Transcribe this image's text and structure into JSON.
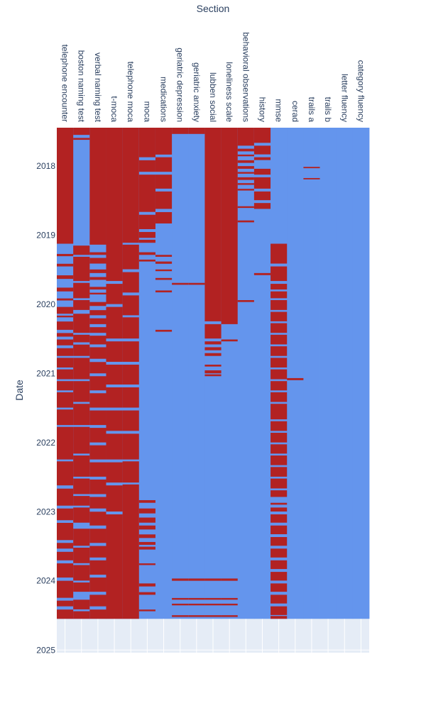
{
  "chart_data": {
    "type": "heatmap",
    "xlabel": "Section",
    "ylabel": "Date",
    "x_axis_position": "top",
    "categories": [
      "telephone encounter",
      "boston naming test",
      "verbal naming test",
      "t-moca",
      "telephone moca",
      "moca",
      "medications",
      "geriatric depression",
      "geriatric anxiety",
      "lubben social",
      "loneliness scale",
      "behavioral observations",
      "history",
      "mmse",
      "cerad",
      "trails a",
      "trails b",
      "letter fluency",
      "category fluency"
    ],
    "yticks": [
      "2018",
      "2019",
      "2020",
      "2021",
      "2022",
      "2023",
      "2024",
      "2025"
    ],
    "ylim": [
      "2017-06-12",
      "2025-01-15"
    ],
    "data_range": [
      "2017-06-12",
      "2024-07-20"
    ],
    "colors": {
      "present": "#b22222",
      "absent": "#6495ed",
      "background": "#e5ecf6",
      "grid": "#ffffff"
    },
    "series": [
      {
        "name": "telephone encounter",
        "present_ranges": [
          [
            "2017-06-12",
            "2019-02-15"
          ],
          [
            "2019-04-10",
            "2019-04-22"
          ],
          [
            "2019-06-01",
            "2019-06-15"
          ],
          [
            "2019-08-01",
            "2019-08-20"
          ],
          [
            "2019-10-05",
            "2019-10-25"
          ],
          [
            "2019-12-01",
            "2019-12-12"
          ],
          [
            "2020-01-15",
            "2020-02-20"
          ],
          [
            "2020-03-01",
            "2020-03-10"
          ],
          [
            "2020-04-01",
            "2020-05-15"
          ],
          [
            "2020-06-01",
            "2020-06-20"
          ],
          [
            "2020-07-05",
            "2020-08-05"
          ],
          [
            "2020-08-20",
            "2020-09-30"
          ],
          [
            "2020-10-10",
            "2020-11-30"
          ],
          [
            "2020-12-10",
            "2021-01-31"
          ],
          [
            "2021-02-10",
            "2021-03-31"
          ],
          [
            "2021-04-10",
            "2021-06-30"
          ],
          [
            "2021-07-10",
            "2021-09-30"
          ],
          [
            "2021-10-10",
            "2022-03-31"
          ],
          [
            "2022-04-10",
            "2022-08-15"
          ],
          [
            "2022-09-01",
            "2022-11-30"
          ],
          [
            "2022-12-15",
            "2023-02-15"
          ],
          [
            "2023-03-01",
            "2023-05-31"
          ],
          [
            "2023-06-15",
            "2023-07-15"
          ],
          [
            "2023-08-01",
            "2023-09-15"
          ],
          [
            "2023-10-01",
            "2023-12-15"
          ],
          [
            "2024-01-01",
            "2024-03-31"
          ],
          [
            "2024-04-15",
            "2024-05-15"
          ],
          [
            "2024-06-01",
            "2024-07-20"
          ]
        ]
      },
      {
        "name": "boston naming test",
        "present_ranges": [
          [
            "2017-06-12",
            "2017-07-20"
          ],
          [
            "2017-08-05",
            "2017-08-15"
          ],
          [
            "2019-02-25",
            "2019-04-15"
          ],
          [
            "2019-04-25",
            "2019-08-31"
          ],
          [
            "2019-09-10",
            "2019-11-30"
          ],
          [
            "2019-12-10",
            "2020-01-31"
          ],
          [
            "2020-02-20",
            "2020-05-31"
          ],
          [
            "2020-06-10",
            "2020-07-20"
          ],
          [
            "2020-08-01",
            "2020-09-30"
          ],
          [
            "2020-10-10",
            "2021-01-31"
          ],
          [
            "2021-02-10",
            "2021-05-31"
          ],
          [
            "2021-06-10",
            "2021-09-30"
          ],
          [
            "2021-10-10",
            "2022-02-28"
          ],
          [
            "2022-03-10",
            "2022-06-30"
          ],
          [
            "2022-07-10",
            "2022-09-30"
          ],
          [
            "2022-10-10",
            "2022-11-30"
          ],
          [
            "2022-12-10",
            "2023-02-28"
          ],
          [
            "2023-04-01",
            "2023-06-30"
          ],
          [
            "2023-07-10",
            "2023-09-30"
          ],
          [
            "2023-10-10",
            "2023-12-31"
          ],
          [
            "2024-01-10",
            "2024-02-28"
          ],
          [
            "2024-04-10",
            "2024-05-31"
          ],
          [
            "2024-06-10",
            "2024-07-20"
          ]
        ]
      },
      {
        "name": "verbal naming test",
        "present_ranges": [
          [
            "2017-06-12",
            "2019-02-20"
          ],
          [
            "2019-04-01",
            "2019-04-15"
          ],
          [
            "2019-05-01",
            "2019-05-31"
          ],
          [
            "2019-07-01",
            "2019-07-20"
          ],
          [
            "2019-08-10",
            "2019-08-25"
          ],
          [
            "2019-10-01",
            "2019-10-15"
          ],
          [
            "2019-11-01",
            "2019-11-10"
          ],
          [
            "2019-12-20",
            "2020-01-10"
          ],
          [
            "2020-02-01",
            "2020-02-28"
          ],
          [
            "2020-03-15",
            "2020-04-15"
          ],
          [
            "2020-05-01",
            "2020-05-31"
          ],
          [
            "2020-06-15",
            "2020-07-31"
          ],
          [
            "2020-08-15",
            "2020-10-15"
          ],
          [
            "2020-11-01",
            "2020-12-31"
          ],
          [
            "2021-01-15",
            "2021-03-31"
          ],
          [
            "2021-04-15",
            "2021-06-30"
          ],
          [
            "2021-07-15",
            "2021-09-30"
          ],
          [
            "2021-10-15",
            "2021-12-31"
          ],
          [
            "2022-01-15",
            "2022-03-31"
          ],
          [
            "2022-04-15",
            "2022-06-30"
          ],
          [
            "2022-07-15",
            "2022-09-30"
          ],
          [
            "2022-10-15",
            "2022-12-15"
          ],
          [
            "2023-01-01",
            "2023-03-15"
          ],
          [
            "2023-04-01",
            "2023-06-15"
          ],
          [
            "2023-07-01",
            "2023-08-31"
          ],
          [
            "2023-09-15",
            "2023-11-30"
          ],
          [
            "2023-12-15",
            "2024-02-28"
          ],
          [
            "2024-03-15",
            "2024-05-15"
          ],
          [
            "2024-06-01",
            "2024-07-20"
          ]
        ]
      },
      {
        "name": "t-moca",
        "present_ranges": [
          [
            "2017-06-12",
            "2019-08-31"
          ],
          [
            "2019-09-15",
            "2019-12-31"
          ],
          [
            "2020-01-15",
            "2020-06-30"
          ],
          [
            "2020-07-15",
            "2020-10-31"
          ],
          [
            "2020-11-15",
            "2021-02-28"
          ],
          [
            "2021-03-15",
            "2021-06-30"
          ],
          [
            "2021-07-15",
            "2021-10-31"
          ],
          [
            "2021-11-15",
            "2022-03-31"
          ],
          [
            "2022-04-15",
            "2022-07-31"
          ],
          [
            "2022-08-15",
            "2022-12-31"
          ],
          [
            "2023-01-15",
            "2024-07-20"
          ]
        ]
      },
      {
        "name": "telephone moca",
        "present_ranges": [
          [
            "2017-06-12",
            "2019-02-10"
          ],
          [
            "2019-02-20",
            "2019-06-30"
          ],
          [
            "2019-07-15",
            "2019-10-31"
          ],
          [
            "2019-11-15",
            "2020-02-28"
          ],
          [
            "2020-03-10",
            "2020-06-30"
          ],
          [
            "2020-07-15",
            "2020-10-31"
          ],
          [
            "2020-11-15",
            "2021-02-28"
          ],
          [
            "2021-03-15",
            "2021-06-30"
          ],
          [
            "2021-07-15",
            "2021-10-31"
          ],
          [
            "2021-11-15",
            "2022-03-31"
          ],
          [
            "2022-04-10",
            "2022-07-31"
          ],
          [
            "2022-08-10",
            "2024-07-20"
          ]
        ]
      },
      {
        "name": "moca",
        "present_ranges": [
          [
            "2017-06-12",
            "2017-11-15"
          ],
          [
            "2017-12-01",
            "2018-01-31"
          ],
          [
            "2018-02-15",
            "2018-08-31"
          ],
          [
            "2018-09-15",
            "2018-11-30"
          ],
          [
            "2018-12-15",
            "2019-01-15"
          ],
          [
            "2019-01-25",
            "2019-02-10"
          ],
          [
            "2019-04-01",
            "2019-04-15"
          ],
          [
            "2019-05-10",
            "2019-05-20"
          ],
          [
            "2022-11-01",
            "2022-11-15"
          ],
          [
            "2022-12-15",
            "2023-01-10"
          ],
          [
            "2023-02-01",
            "2023-02-28"
          ],
          [
            "2023-03-15",
            "2023-04-05"
          ],
          [
            "2023-05-01",
            "2023-05-20"
          ],
          [
            "2023-06-10",
            "2023-06-25"
          ],
          [
            "2023-07-05",
            "2023-07-20"
          ],
          [
            "2023-10-01",
            "2023-10-10"
          ],
          [
            "2024-01-15",
            "2024-01-31"
          ],
          [
            "2024-03-01",
            "2024-03-15"
          ],
          [
            "2024-06-01",
            "2024-06-10"
          ]
        ]
      },
      {
        "name": "medications",
        "present_ranges": [
          [
            "2017-06-12",
            "2017-11-01"
          ],
          [
            "2017-11-15",
            "2018-01-31"
          ],
          [
            "2018-02-15",
            "2018-04-30"
          ],
          [
            "2018-05-15",
            "2018-08-15"
          ],
          [
            "2018-09-01",
            "2018-10-31"
          ],
          [
            "2019-04-15",
            "2019-04-25"
          ],
          [
            "2019-05-20",
            "2019-06-01"
          ],
          [
            "2019-07-01",
            "2019-07-10"
          ],
          [
            "2019-08-15",
            "2019-08-25"
          ],
          [
            "2019-10-20",
            "2019-10-30"
          ],
          [
            "2020-05-15",
            "2020-05-25"
          ]
        ]
      },
      {
        "name": "geriatric depression",
        "present_ranges": [
          [
            "2017-06-12",
            "2017-07-15"
          ],
          [
            "2019-09-10",
            "2019-09-20"
          ],
          [
            "2023-12-20",
            "2024-01-01"
          ],
          [
            "2024-04-01",
            "2024-04-10"
          ],
          [
            "2024-05-01",
            "2024-05-10"
          ],
          [
            "2024-07-01",
            "2024-07-10"
          ]
        ]
      },
      {
        "name": "geriatric anxiety",
        "present_ranges": [
          [
            "2017-06-12",
            "2017-07-15"
          ],
          [
            "2019-09-10",
            "2019-09-20"
          ],
          [
            "2023-12-20",
            "2024-01-01"
          ],
          [
            "2024-04-01",
            "2024-04-10"
          ],
          [
            "2024-05-01",
            "2024-05-10"
          ],
          [
            "2024-07-01",
            "2024-07-10"
          ]
        ]
      },
      {
        "name": "lubben social",
        "present_ranges": [
          [
            "2017-06-12",
            "2020-03-31"
          ],
          [
            "2020-04-15",
            "2020-06-30"
          ],
          [
            "2020-07-15",
            "2020-07-31"
          ],
          [
            "2020-08-15",
            "2020-08-31"
          ],
          [
            "2020-09-15",
            "2020-09-30"
          ],
          [
            "2020-11-15",
            "2020-11-25"
          ],
          [
            "2020-12-15",
            "2020-12-31"
          ],
          [
            "2021-01-05",
            "2021-01-15"
          ],
          [
            "2023-12-20",
            "2024-01-01"
          ],
          [
            "2024-04-01",
            "2024-04-10"
          ],
          [
            "2024-05-01",
            "2024-05-10"
          ],
          [
            "2024-07-01",
            "2024-07-10"
          ]
        ]
      },
      {
        "name": "loneliness scale",
        "present_ranges": [
          [
            "2017-06-12",
            "2020-04-15"
          ],
          [
            "2020-07-05",
            "2020-07-15"
          ],
          [
            "2023-12-20",
            "2024-01-01"
          ],
          [
            "2024-04-01",
            "2024-04-10"
          ],
          [
            "2024-05-01",
            "2024-05-10"
          ],
          [
            "2024-07-01",
            "2024-07-10"
          ]
        ]
      },
      {
        "name": "behavioral observations",
        "present_ranges": [
          [
            "2017-06-12",
            "2017-09-15"
          ],
          [
            "2017-10-01",
            "2017-10-15"
          ],
          [
            "2017-11-01",
            "2017-11-10"
          ],
          [
            "2017-12-01",
            "2017-12-15"
          ],
          [
            "2018-01-01",
            "2018-01-15"
          ],
          [
            "2018-02-01",
            "2018-02-10"
          ],
          [
            "2018-03-01",
            "2018-03-15"
          ],
          [
            "2018-04-01",
            "2018-04-10"
          ],
          [
            "2018-05-01",
            "2018-05-10"
          ],
          [
            "2018-08-01",
            "2018-08-10"
          ],
          [
            "2018-10-15",
            "2018-10-25"
          ],
          [
            "2019-12-10",
            "2019-12-20"
          ]
        ]
      },
      {
        "name": "history",
        "present_ranges": [
          [
            "2017-06-12",
            "2017-08-31"
          ],
          [
            "2017-09-15",
            "2017-10-31"
          ],
          [
            "2017-11-15",
            "2017-11-30"
          ],
          [
            "2018-01-15",
            "2018-02-15"
          ],
          [
            "2018-03-01",
            "2018-04-30"
          ],
          [
            "2018-05-15",
            "2018-06-30"
          ],
          [
            "2018-07-15",
            "2018-08-15"
          ],
          [
            "2019-07-20",
            "2019-07-31"
          ]
        ]
      },
      {
        "name": "mmse",
        "present_ranges": [
          [
            "2019-02-15",
            "2019-05-31"
          ],
          [
            "2019-06-15",
            "2019-08-31"
          ],
          [
            "2019-09-15",
            "2019-10-15"
          ],
          [
            "2019-10-25",
            "2019-11-30"
          ],
          [
            "2019-12-10",
            "2020-01-31"
          ],
          [
            "2020-02-10",
            "2020-03-31"
          ],
          [
            "2020-04-10",
            "2020-05-31"
          ],
          [
            "2020-06-10",
            "2020-07-31"
          ],
          [
            "2020-08-10",
            "2020-09-30"
          ],
          [
            "2020-10-10",
            "2020-11-30"
          ],
          [
            "2020-12-10",
            "2021-01-31"
          ],
          [
            "2021-02-10",
            "2021-03-31"
          ],
          [
            "2021-04-10",
            "2021-05-31"
          ],
          [
            "2021-06-10",
            "2021-08-31"
          ],
          [
            "2021-09-10",
            "2021-10-31"
          ],
          [
            "2021-11-10",
            "2021-12-31"
          ],
          [
            "2022-01-10",
            "2022-02-28"
          ],
          [
            "2022-03-10",
            "2022-04-30"
          ],
          [
            "2022-05-10",
            "2022-06-30"
          ],
          [
            "2022-07-10",
            "2022-08-31"
          ],
          [
            "2022-09-10",
            "2022-10-15"
          ],
          [
            "2022-11-15",
            "2022-11-25"
          ],
          [
            "2022-12-10",
            "2022-12-31"
          ],
          [
            "2023-01-15",
            "2023-02-28"
          ],
          [
            "2023-03-15",
            "2023-04-30"
          ],
          [
            "2023-05-15",
            "2023-06-30"
          ],
          [
            "2023-07-15",
            "2023-08-31"
          ],
          [
            "2023-09-15",
            "2023-10-31"
          ],
          [
            "2023-11-15",
            "2023-12-31"
          ],
          [
            "2024-01-15",
            "2024-02-28"
          ],
          [
            "2024-03-15",
            "2024-04-30"
          ],
          [
            "2024-05-15",
            "2024-06-30"
          ],
          [
            "2024-07-05",
            "2024-07-20"
          ]
        ]
      },
      {
        "name": "cerad",
        "present_ranges": [
          [
            "2021-01-25",
            "2021-02-05"
          ]
        ]
      },
      {
        "name": "trails a",
        "present_ranges": [
          [
            "2018-01-05",
            "2018-01-12"
          ],
          [
            "2018-03-05",
            "2018-03-12"
          ]
        ]
      },
      {
        "name": "trails b",
        "present_ranges": []
      },
      {
        "name": "letter fluency",
        "present_ranges": []
      },
      {
        "name": "category fluency",
        "present_ranges": []
      }
    ]
  }
}
